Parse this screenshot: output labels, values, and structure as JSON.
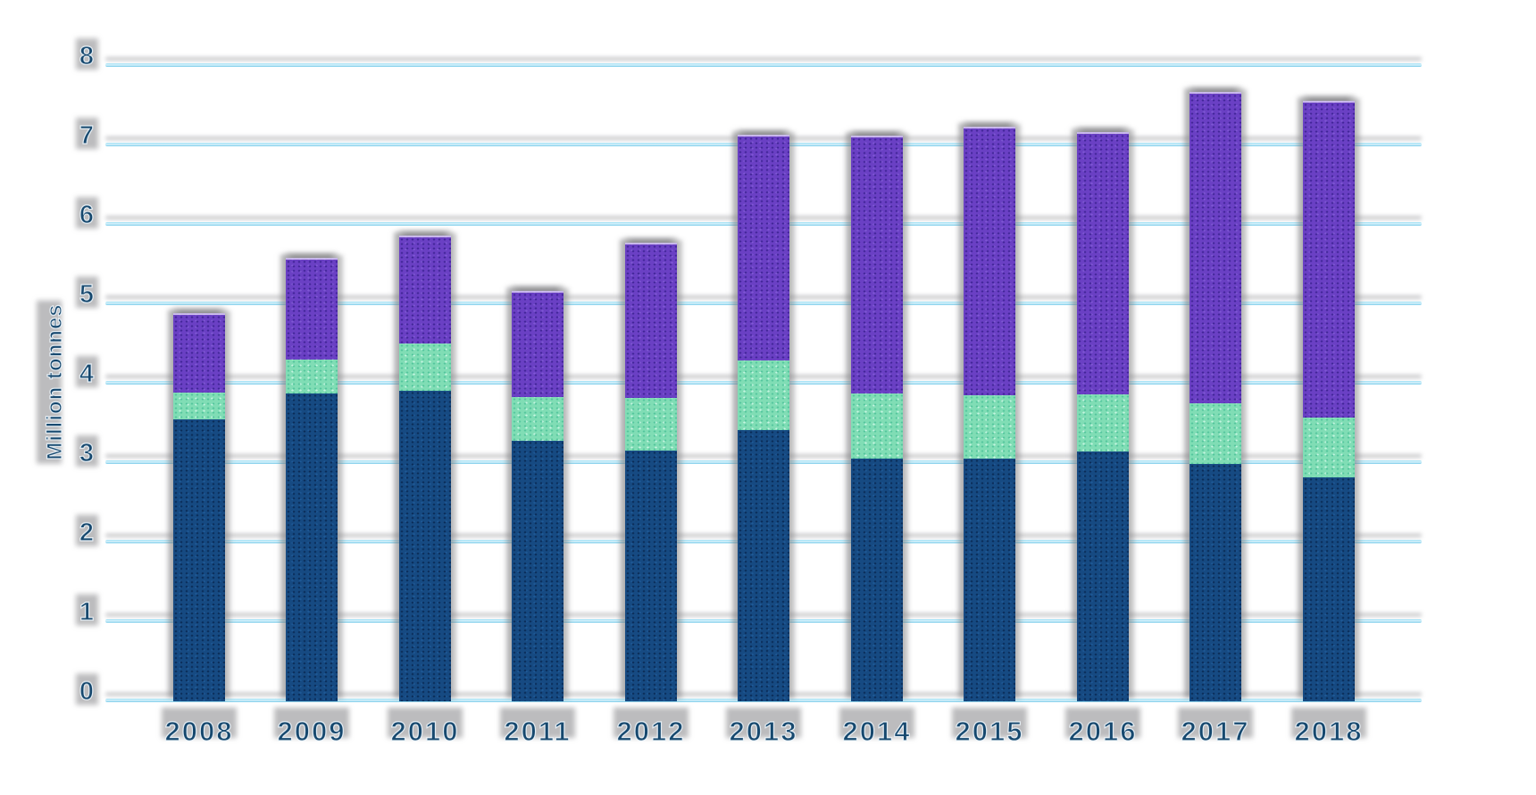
{
  "page": {
    "background": "#ffffff"
  },
  "chart_data": {
    "type": "bar",
    "stacked": true,
    "title": "",
    "xlabel": "",
    "ylabel": "Million tonnes",
    "categories": [
      "2008",
      "2009",
      "2010",
      "2011",
      "2012",
      "2013",
      "2014",
      "2015",
      "2016",
      "2017",
      "2018"
    ],
    "series": [
      {
        "name": "bottom-segment-dark-blue",
        "color": "#164a82",
        "values": [
          3.57,
          3.89,
          3.92,
          3.3,
          3.17,
          3.43,
          3.07,
          3.06,
          3.16,
          3.0,
          2.83
        ]
      },
      {
        "name": "middle-segment-mint-green",
        "color": "#7edcb4",
        "values": [
          0.34,
          0.43,
          0.6,
          0.55,
          0.67,
          0.88,
          0.82,
          0.81,
          0.72,
          0.76,
          0.75
        ]
      },
      {
        "name": "top-segment-purple",
        "color": "#6a40c4",
        "values": [
          0.98,
          1.26,
          1.34,
          1.32,
          1.94,
          2.82,
          3.23,
          3.37,
          3.29,
          3.91,
          3.98
        ]
      }
    ],
    "ylim": [
      0,
      8
    ],
    "yticks": [
      0,
      1,
      2,
      3,
      4,
      5,
      6,
      7,
      8
    ],
    "grid": "horizontal",
    "gridline_color": "#7fd2ee",
    "axis_text_color": "#16486e",
    "legend": "none"
  }
}
